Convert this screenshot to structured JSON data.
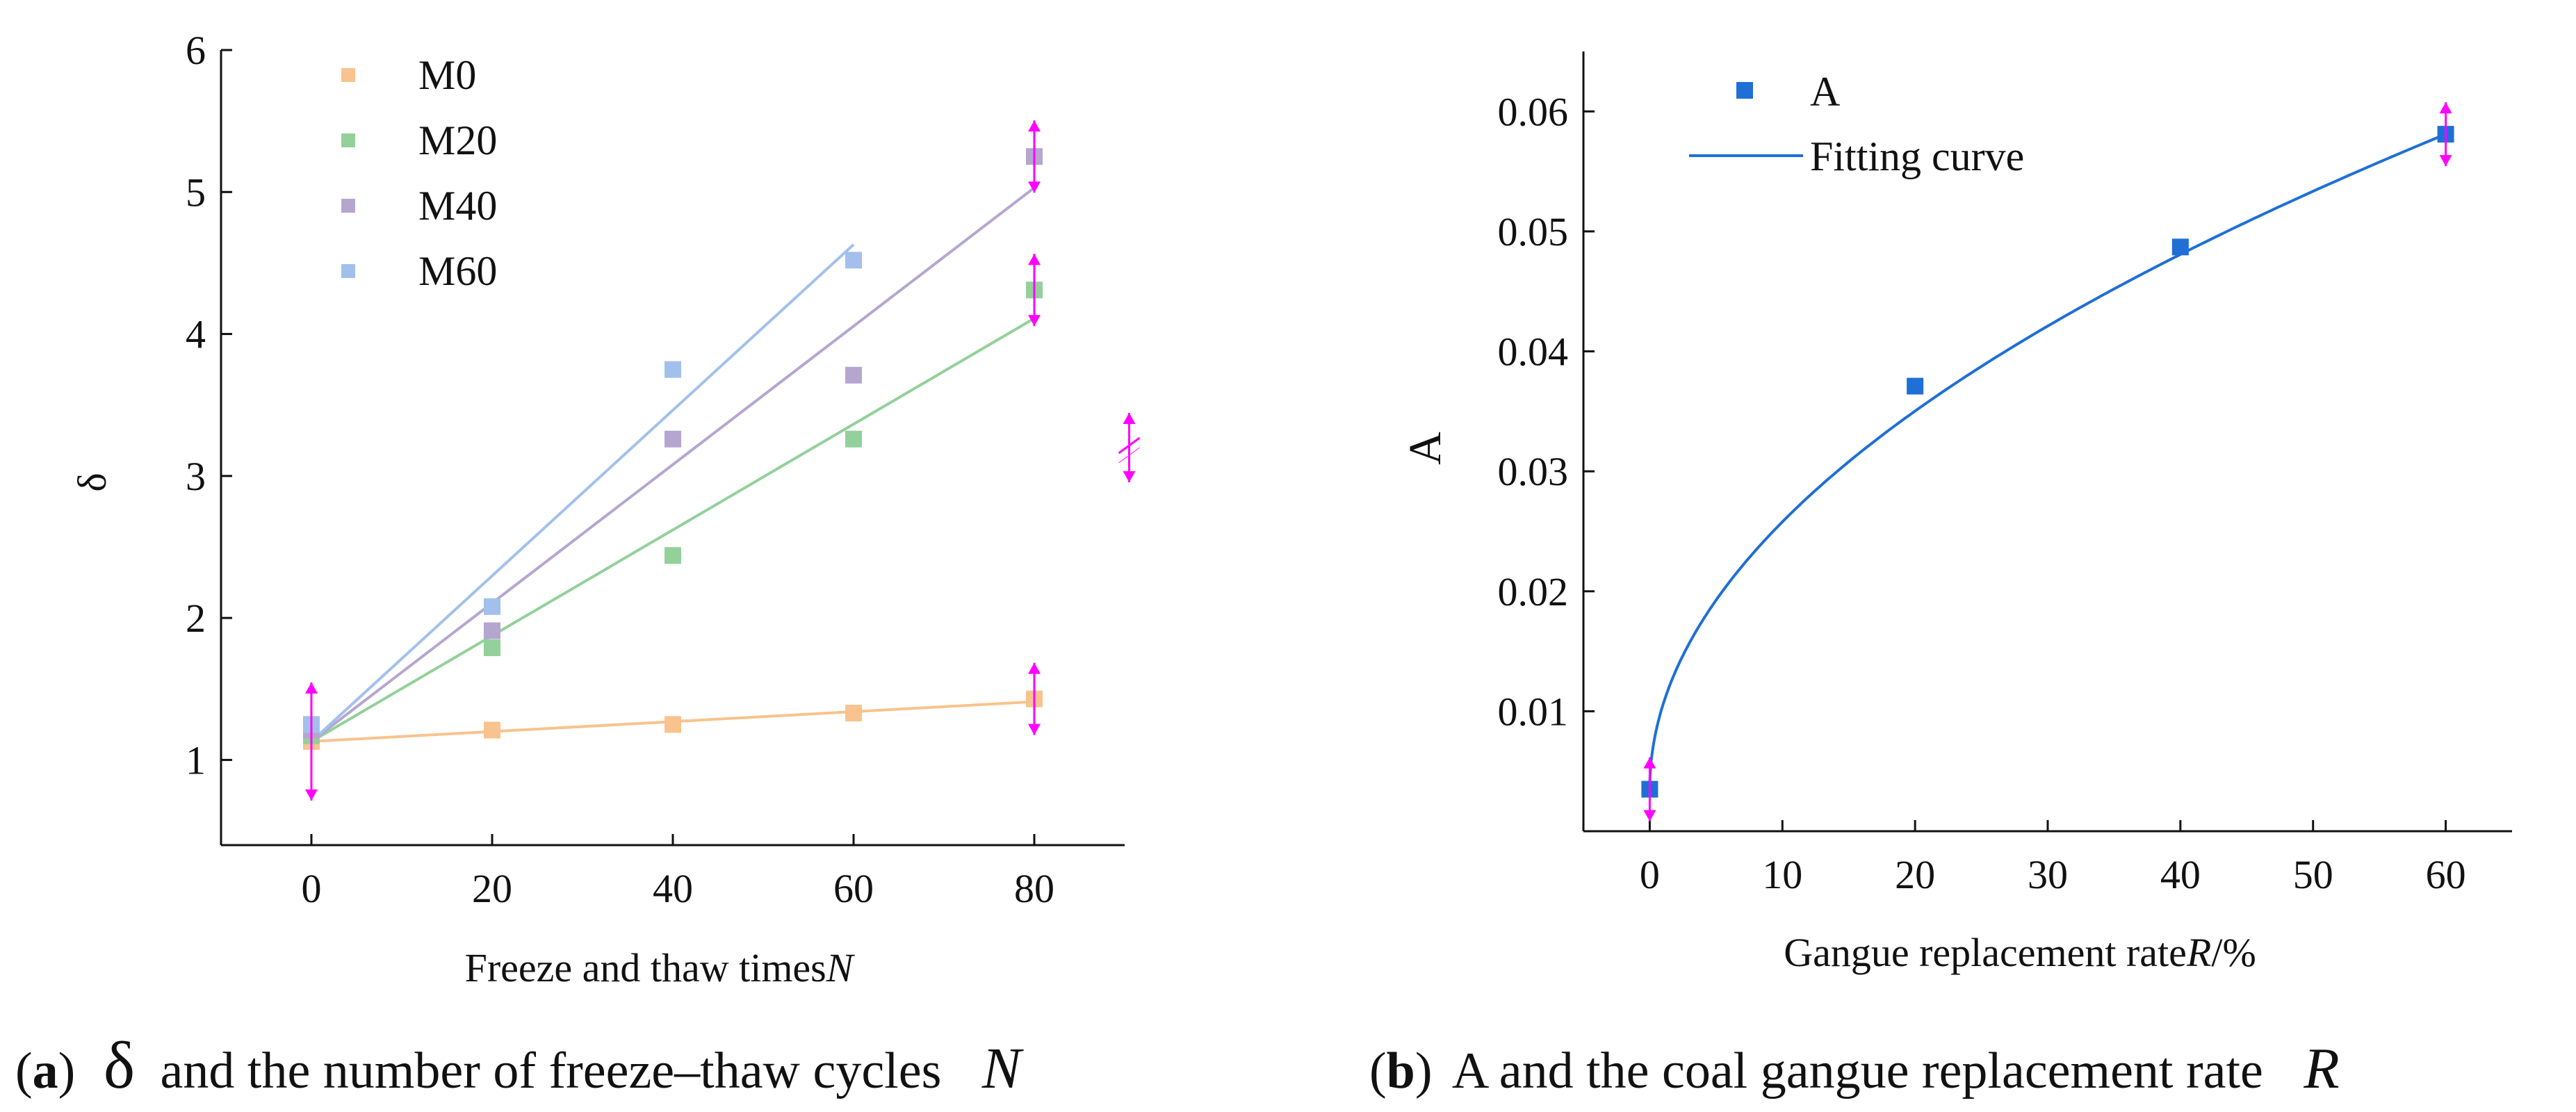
{
  "figure": {
    "caption_a": {
      "open": "(",
      "letter": "a",
      "close": ")",
      "symbol": "δ",
      "text": "and the number of freeze–thaw cycles",
      "var": "N"
    },
    "caption_b": {
      "open": "(",
      "letter": "b",
      "close": ")",
      "text": "A and the coal gangue replacement rate",
      "var": "R"
    },
    "error_marker_color": "#ff00ff"
  },
  "chart_data": [
    {
      "type": "scatter",
      "panel": "a",
      "xlabel_text": "Freeze and thaw times",
      "xlabel_var": "N",
      "ylabel": "δ",
      "xlim": [
        -10,
        90
      ],
      "ylim": [
        0.4,
        6
      ],
      "xticks": [
        0,
        20,
        40,
        60,
        80
      ],
      "yticks": [
        1,
        2,
        3,
        4,
        5,
        6
      ],
      "grid": false,
      "legend_position": "top-left",
      "series": [
        {
          "name": "M0",
          "color": "#f8c38e",
          "x": [
            0,
            20,
            40,
            60,
            80
          ],
          "y": [
            1.13,
            1.21,
            1.25,
            1.33,
            1.43
          ],
          "fit": {
            "x0": 0,
            "y0": 1.13,
            "x1": 80,
            "y1": 1.41
          }
        },
        {
          "name": "M20",
          "color": "#93d09a",
          "x": [
            0,
            20,
            40,
            60,
            80
          ],
          "y": [
            1.17,
            1.79,
            2.44,
            3.26,
            4.31
          ],
          "fit": {
            "x0": 0,
            "y0": 1.13,
            "x1": 80,
            "y1": 4.11
          }
        },
        {
          "name": "M40",
          "color": "#b5a6d0",
          "x": [
            0,
            20,
            40,
            60,
            80
          ],
          "y": [
            1.21,
            1.91,
            3.26,
            3.71,
            5.25
          ],
          "fit": {
            "x0": 0,
            "y0": 1.13,
            "x1": 80,
            "y1": 5.03
          }
        },
        {
          "name": "M60",
          "color": "#a3c0ec",
          "x": [
            0,
            20,
            40,
            60
          ],
          "y": [
            1.25,
            2.08,
            3.75,
            4.52
          ],
          "fit": {
            "x0": 0,
            "y0": 1.13,
            "x1": 60,
            "y1": 4.63
          }
        }
      ]
    },
    {
      "type": "scatter",
      "panel": "b",
      "xlabel_text": "Gangue replacement rate",
      "xlabel_var": "R",
      "xlabel_unit": "/%",
      "ylabel": "A",
      "xlim": [
        -5,
        65
      ],
      "ylim": [
        0,
        0.065
      ],
      "xticks": [
        0,
        10,
        20,
        30,
        40,
        50,
        60
      ],
      "yticks": [
        0.01,
        0.02,
        0.03,
        0.04,
        0.05,
        0.06
      ],
      "ytick_labels": [
        "0.01",
        "0.02",
        "0.03",
        "0.04",
        "0.05",
        "0.06"
      ],
      "grid": false,
      "legend_position": "top-left",
      "series": [
        {
          "name": "A",
          "color": "#1f6fd6",
          "x": [
            0,
            20,
            40,
            60
          ],
          "y": [
            0.0035,
            0.0371,
            0.0487,
            0.0581
          ]
        }
      ],
      "fit": {
        "name": "Fitting curve",
        "color": "#1f6fd6",
        "x_range": [
          0,
          60
        ],
        "y_at_start": 0.0035,
        "y_at_end": 0.0581
      }
    }
  ]
}
